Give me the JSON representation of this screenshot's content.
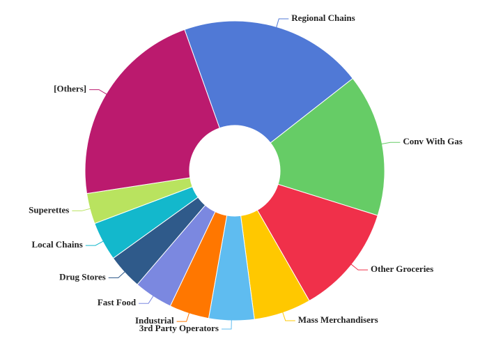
{
  "chart_data": {
    "type": "donut",
    "categories": [
      "Regional Chains",
      "Conv With Gas",
      "Other Groceries",
      "Mass Merchandisers",
      "3rd Party Operators",
      "Industrial",
      "Fast Food",
      "Drug Stores",
      "Local Chains",
      "Superettes",
      "[Others]"
    ],
    "values": [
      19.9,
      15.4,
      11.9,
      6.2,
      4.9,
      4.3,
      4.2,
      3.8,
      4.2,
      3.3,
      22.0
    ],
    "colors": [
      "#5079d6",
      "#66cc66",
      "#f0304a",
      "#ffc800",
      "#5fbcf0",
      "#ff7700",
      "#7b88e0",
      "#2f5a8a",
      "#13b8cc",
      "#b9e35f",
      "#bb1a6e"
    ]
  }
}
